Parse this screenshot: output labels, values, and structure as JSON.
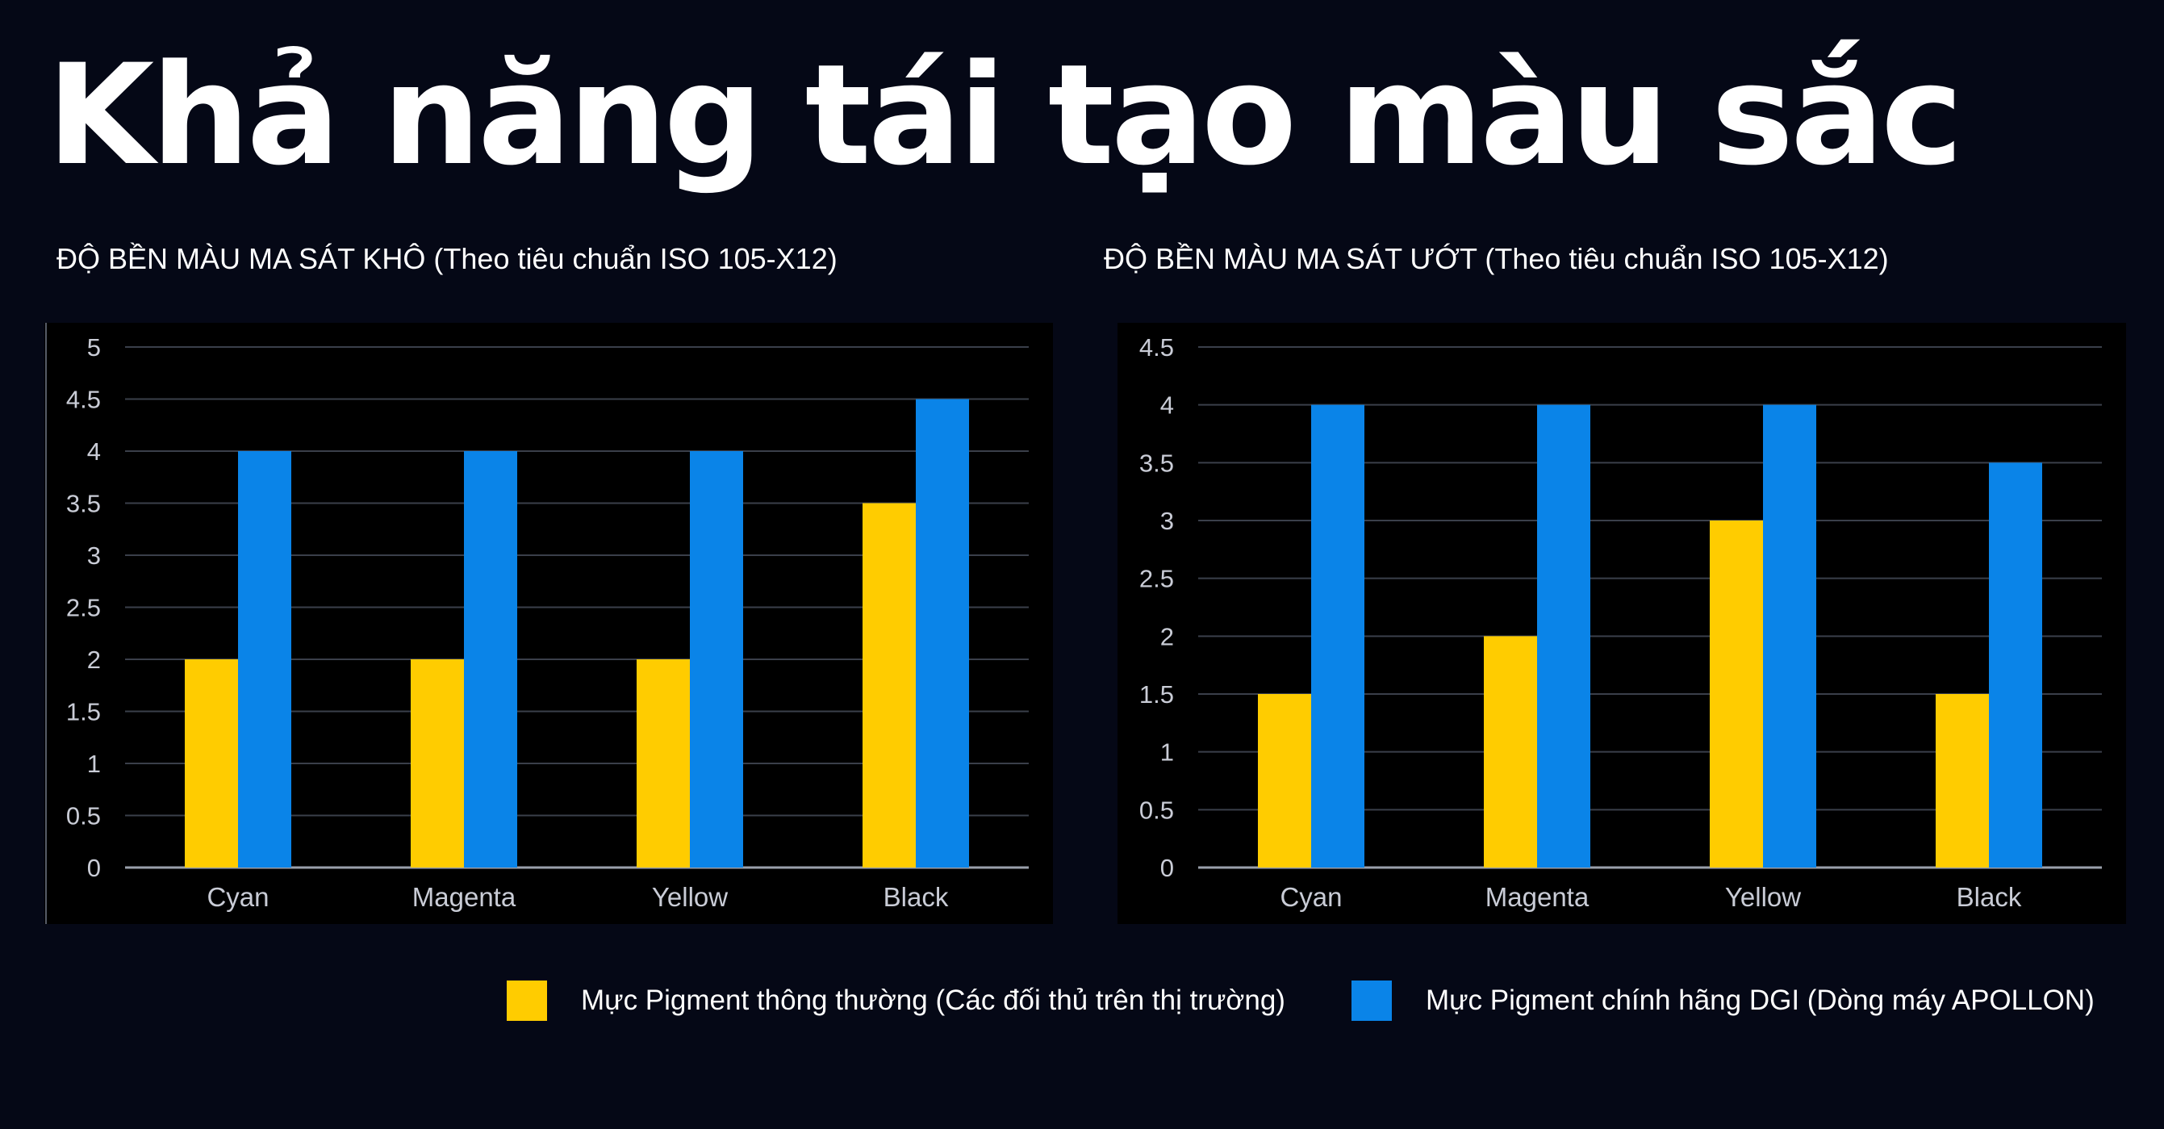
{
  "title": "Khả năng tái tạo màu sắc",
  "colors": {
    "background": "#050816",
    "chart_background": "#000000",
    "series_a": "#FFCC00",
    "series_b": "#0A84E8"
  },
  "legend": [
    {
      "name": "Mực Pigment thông thường (Các đối thủ trên thị trường)",
      "color": "#FFCC00"
    },
    {
      "name": "Mực Pigment chính hãng DGI (Dòng máy APOLLON)",
      "color": "#0A84E8"
    }
  ],
  "chart_data": [
    {
      "type": "bar",
      "title": "ĐỘ BỀN MÀU MA SÁT KHÔ (Theo tiêu chuẩn ISO 105-X12)",
      "categories": [
        "Cyan",
        "Magenta",
        "Yellow",
        "Black"
      ],
      "series": [
        {
          "name": "Mực Pigment thông thường (Các đối thủ trên thị trường)",
          "values": [
            2,
            2,
            2,
            3.5
          ]
        },
        {
          "name": "Mực Pigment chính hãng DGI (Dòng máy APOLLON)",
          "values": [
            4,
            4,
            4,
            4.5
          ]
        }
      ],
      "ylim": [
        0,
        5
      ],
      "yticks": [
        "0",
        "0.5",
        "1",
        "1.5",
        "2",
        "2.5",
        "3",
        "3.5",
        "4",
        "4.5",
        "5"
      ],
      "grid": true,
      "legend_placement": "bottom"
    },
    {
      "type": "bar",
      "title": "ĐỘ BỀN MÀU MA SÁT ƯỚT (Theo tiêu chuẩn ISO 105-X12)",
      "categories": [
        "Cyan",
        "Magenta",
        "Yellow",
        "Black"
      ],
      "series": [
        {
          "name": "Mực Pigment thông thường (Các đối thủ trên thị trường)",
          "values": [
            1.5,
            2,
            3,
            1.5
          ]
        },
        {
          "name": "Mực Pigment chính hãng DGI (Dòng máy APOLLON)",
          "values": [
            4,
            4,
            4,
            3.5
          ]
        }
      ],
      "ylim": [
        0,
        4.5
      ],
      "yticks": [
        "0",
        "0.5",
        "1",
        "1.5",
        "2",
        "2.5",
        "3",
        "3.5",
        "4",
        "4.5"
      ],
      "grid": true,
      "legend_placement": "bottom"
    }
  ]
}
